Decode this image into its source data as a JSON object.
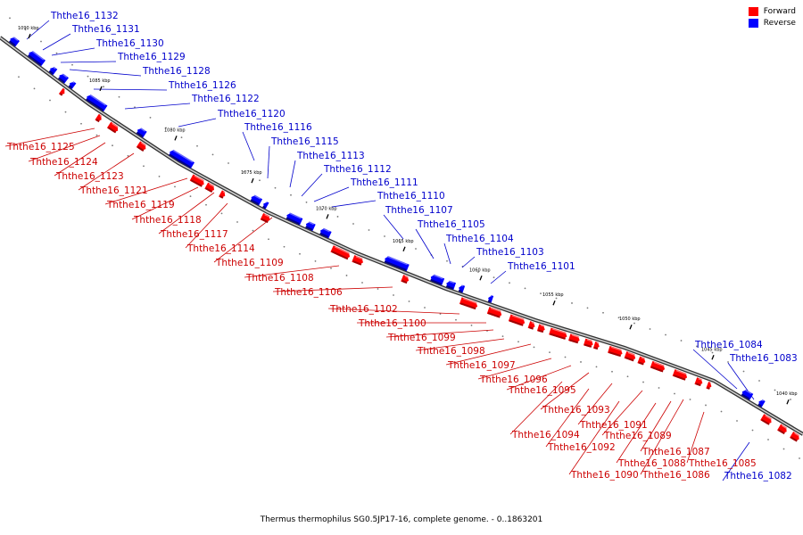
{
  "legend": {
    "forward_label": "Forward",
    "reverse_label": "Reverse",
    "forward_color": "#ff0000",
    "reverse_color": "#0000ff"
  },
  "caption": "Thermus thermophilus SG0.5JP17-16, complete genome. - 0..1863201",
  "colors": {
    "forward_label": "#cc0000",
    "reverse_label": "#0000cc",
    "backbone": "#555555"
  },
  "ticks": [
    "1090 kbp",
    "1085 kbp",
    "1080 kbp",
    "1075 kbp",
    "1070 kbp",
    "1065 kbp",
    "1060 kbp",
    "1055 kbp",
    "1050 kbp",
    "1045 kbp",
    "1040 kbp"
  ],
  "reverse_genes": [
    "Ththe16_1132",
    "Ththe16_1131",
    "Ththe16_1130",
    "Ththe16_1129",
    "Ththe16_1128",
    "Ththe16_1126",
    "Ththe16_1122",
    "Ththe16_1120",
    "Ththe16_1116",
    "Ththe16_1115",
    "Ththe16_1113",
    "Ththe16_1112",
    "Ththe16_1111",
    "Ththe16_1110",
    "Ththe16_1107",
    "Ththe16_1105",
    "Ththe16_1104",
    "Ththe16_1103",
    "Ththe16_1101",
    "Ththe16_1084",
    "Ththe16_1083",
    "Ththe16_1082"
  ],
  "forward_genes": [
    "Ththe16_1125",
    "Ththe16_1124",
    "Ththe16_1123",
    "Ththe16_1121",
    "Ththe16_1119",
    "Ththe16_1118",
    "Ththe16_1117",
    "Ththe16_1114",
    "Ththe16_1109",
    "Ththe16_1108",
    "Ththe16_1106",
    "Ththe16_1102",
    "Ththe16_1100",
    "Ththe16_1099",
    "Ththe16_1098",
    "Ththe16_1097",
    "Ththe16_1096",
    "Ththe16_1095",
    "Ththe16_1093",
    "Ththe16_1094",
    "Ththe16_1091",
    "Ththe16_1092",
    "Ththe16_1089",
    "Ththe16_1090",
    "Ththe16_1087",
    "Ththe16_1088",
    "Ththe16_1086",
    "Ththe16_1085"
  ]
}
